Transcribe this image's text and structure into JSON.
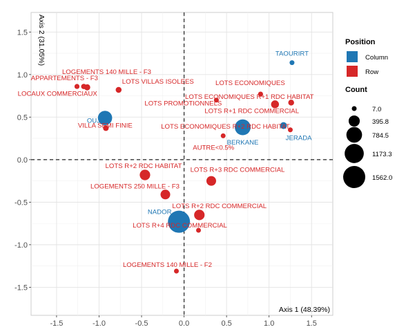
{
  "chart_data": {
    "type": "scatter",
    "title": "",
    "xlabel": "Axis 1 (48.39%)",
    "ylabel": "Axis 2 (31.05%)",
    "xlim": [
      -1.8,
      1.75
    ],
    "ylim": [
      -1.83,
      1.73
    ],
    "xticks": [
      -1.5,
      -1.0,
      -0.5,
      0.0,
      0.5,
      1.0,
      1.5
    ],
    "xtick_labels": [
      "-1.5",
      "-1.0",
      "-0.5",
      "0.0",
      "0.5",
      "1.0",
      "1.5"
    ],
    "yticks": [
      -1.5,
      -1.0,
      -0.5,
      0.0,
      0.5,
      1.0,
      1.5
    ],
    "ytick_labels": [
      "-1.5",
      "-1.0",
      "-0.5",
      "0.0",
      "0.5",
      "1.0",
      "1.5"
    ],
    "grid": true,
    "reference_lines": [
      {
        "axis": "x",
        "value": 0,
        "style": "dashed"
      },
      {
        "axis": "y",
        "value": 0,
        "style": "dashed"
      }
    ],
    "colors": {
      "Column": "#1f77b4",
      "Row": "#d62728"
    },
    "legend_position": "right",
    "legends": {
      "position": {
        "title": "Position",
        "entries": [
          "Column",
          "Row"
        ]
      },
      "count": {
        "title": "Count",
        "entries": [
          "7.0",
          "395.8",
          "784.5",
          "1173.3",
          "1562.0"
        ],
        "values": [
          7.0,
          395.8,
          784.5,
          1173.3,
          1562.0
        ]
      }
    },
    "series": [
      {
        "name": "Column",
        "points": [
          {
            "label": "TAOURIRT",
            "x": 1.27,
            "y": 1.14,
            "count": 7
          },
          {
            "label": "OUJDA",
            "x": -0.93,
            "y": 0.49,
            "count": 650
          },
          {
            "label": "BERKANE",
            "x": 0.69,
            "y": 0.38,
            "count": 800
          },
          {
            "label": "JERADA",
            "x": 1.17,
            "y": 0.4,
            "count": 150
          },
          {
            "label": "NADOR",
            "x": -0.06,
            "y": -0.73,
            "count": 1562
          }
        ]
      },
      {
        "name": "Row",
        "points": [
          {
            "label": "LOGEMENTS 140 MILLE - F3",
            "x": -1.26,
            "y": 0.86,
            "count": 80
          },
          {
            "label": "APPARTEMENTS - F3",
            "x": -1.18,
            "y": 0.86,
            "count": 90
          },
          {
            "label": "LOCAUX COMMERCIAUX",
            "x": -1.14,
            "y": 0.85,
            "count": 120
          },
          {
            "label": "LOTS VILLAS ISOLEES",
            "x": -0.77,
            "y": 0.82,
            "count": 110
          },
          {
            "label": "VILLA SEMI FINIE",
            "x": -0.92,
            "y": 0.37,
            "count": 100
          },
          {
            "label": "LOTS ECONOMIQUES",
            "x": 0.9,
            "y": 0.77,
            "count": 80
          },
          {
            "label": "LOTS ECONOMIQUES R+1 RDC HABITAT",
            "x": 1.07,
            "y": 0.65,
            "count": 200
          },
          {
            "label": "LOTS PROMOTIONNELS",
            "x": 0.38,
            "y": 0.7,
            "count": 50
          },
          {
            "label": "LOTS R+1 RDC COMMERCIAL",
            "x": 1.26,
            "y": 0.67,
            "count": 110
          },
          {
            "label": "LOTS ECONOMIQUES R+2 RDC HABITAT",
            "x": 1.25,
            "y": 0.35,
            "count": 60
          },
          {
            "label": "AUTRE<0.5%",
            "x": 0.46,
            "y": 0.28,
            "count": 60
          },
          {
            "label": "LOTS R+2 RDC HABITAT",
            "x": -0.46,
            "y": -0.18,
            "count": 350
          },
          {
            "label": "LOTS R+3 RDC COMMERCIAL",
            "x": 0.32,
            "y": -0.25,
            "count": 300
          },
          {
            "label": "LOGEMENTS 250 MILLE - F3",
            "x": -0.22,
            "y": -0.41,
            "count": 300
          },
          {
            "label": "LOTS R+2 RDC COMMERCIAL",
            "x": 0.18,
            "y": -0.65,
            "count": 350
          },
          {
            "label": "LOTS R+4 RDC COMMERCIAL",
            "x": 0.17,
            "y": -0.83,
            "count": 50
          },
          {
            "label": "LOGEMENTS 140 MILLE - F2",
            "x": -0.09,
            "y": -1.31,
            "count": 50
          }
        ]
      }
    ]
  }
}
